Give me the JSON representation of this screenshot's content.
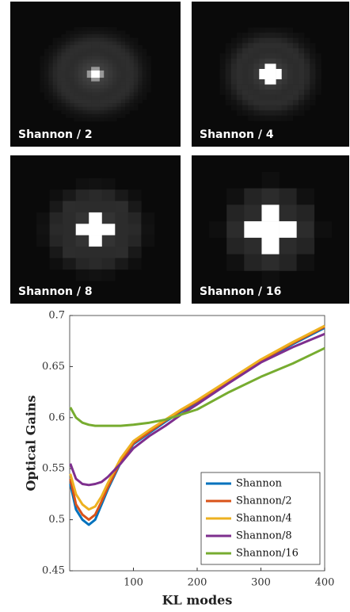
{
  "panels": [
    {
      "label": "Shannon / 2"
    },
    {
      "label": "Shannon / 4"
    },
    {
      "label": "Shannon / 8"
    },
    {
      "label": "Shannon / 16"
    }
  ],
  "chart_data": {
    "type": "line",
    "xlabel": "KL modes",
    "ylabel": "Optical Gains",
    "x": [
      1,
      10,
      20,
      30,
      40,
      50,
      60,
      80,
      100,
      125,
      150,
      175,
      200,
      250,
      300,
      350,
      400
    ],
    "series": [
      {
        "name": "Shannon",
        "color": "#0072bd",
        "values": [
          0.535,
          0.51,
          0.5,
          0.495,
          0.5,
          0.515,
          0.53,
          0.556,
          0.574,
          0.585,
          0.596,
          0.606,
          0.615,
          0.635,
          0.655,
          0.672,
          0.688
        ]
      },
      {
        "name": "Shannon/2",
        "color": "#d95319",
        "values": [
          0.54,
          0.515,
          0.505,
          0.5,
          0.505,
          0.518,
          0.532,
          0.557,
          0.575,
          0.586,
          0.597,
          0.607,
          0.616,
          0.636,
          0.656,
          0.673,
          0.689
        ]
      },
      {
        "name": "Shannon/4",
        "color": "#edb120",
        "values": [
          0.545,
          0.525,
          0.515,
          0.51,
          0.513,
          0.523,
          0.536,
          0.56,
          0.577,
          0.588,
          0.598,
          0.608,
          0.617,
          0.637,
          0.657,
          0.674,
          0.69
        ]
      },
      {
        "name": "Shannon/8",
        "color": "#7e2f8e",
        "values": [
          0.555,
          0.54,
          0.535,
          0.534,
          0.535,
          0.537,
          0.542,
          0.555,
          0.57,
          0.582,
          0.592,
          0.603,
          0.613,
          0.634,
          0.654,
          0.669,
          0.682
        ]
      },
      {
        "name": "Shannon/16",
        "color": "#77ac30",
        "values": [
          0.61,
          0.6,
          0.595,
          0.593,
          0.592,
          0.592,
          0.592,
          0.592,
          0.593,
          0.595,
          0.598,
          0.603,
          0.608,
          0.625,
          0.64,
          0.653,
          0.668
        ]
      }
    ],
    "xlim": [
      0,
      400
    ],
    "ylim": [
      0.45,
      0.7
    ],
    "xticks": [
      100,
      200,
      300,
      400
    ],
    "yticks": [
      0.45,
      0.5,
      0.55,
      0.6,
      0.65,
      0.7
    ],
    "legend": "lower right"
  }
}
